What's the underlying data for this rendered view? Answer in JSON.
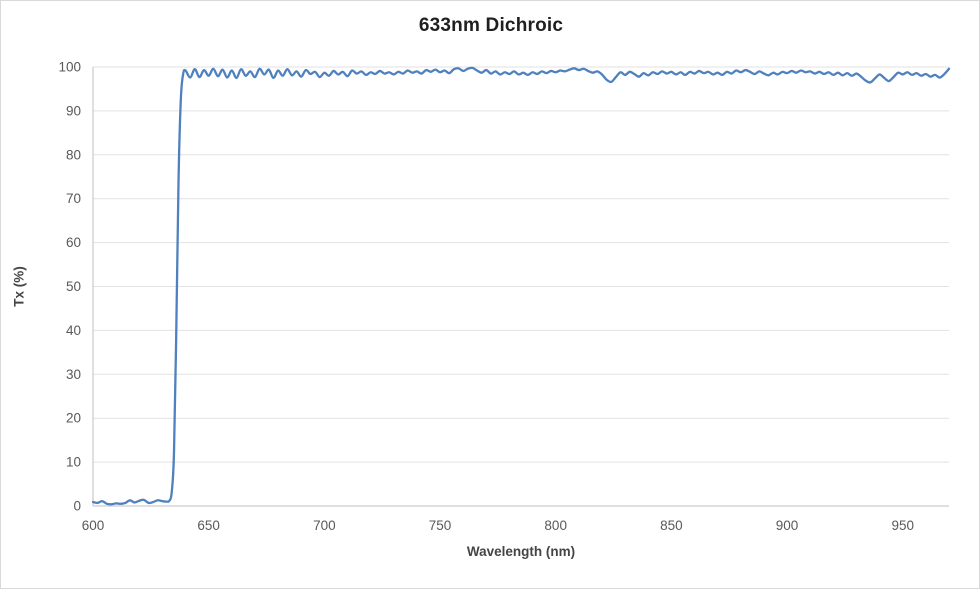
{
  "chart": {
    "title": "633nm Dichroic",
    "x_axis_title": "Wavelength (nm)",
    "y_axis_title": "Tx (%)"
  },
  "style": {
    "line_color": "#4E81BD",
    "grid_color": "#E2E2E2",
    "axis_color": "#BFBFBF",
    "tick_label_color": "#595959",
    "title_color": "#1F1F1F",
    "background": "#FFFFFF"
  },
  "chart_data": {
    "type": "line",
    "title": "633nm Dichroic",
    "xlabel": "Wavelength (nm)",
    "ylabel": "Tx (%)",
    "xlim": [
      600,
      970
    ],
    "ylim": [
      0,
      100
    ],
    "x_ticks": [
      600,
      650,
      700,
      750,
      800,
      850,
      900,
      950
    ],
    "y_ticks": [
      0,
      10,
      20,
      30,
      40,
      50,
      60,
      70,
      80,
      90,
      100
    ],
    "grid": "horizontal",
    "legend": "none",
    "series": [
      {
        "name": "Tx (%)",
        "color": "#4E81BD",
        "points": [
          [
            600,
            0.9
          ],
          [
            602,
            0.7
          ],
          [
            604,
            1.1
          ],
          [
            606,
            0.5
          ],
          [
            608,
            0.4
          ],
          [
            610,
            0.6
          ],
          [
            612,
            0.5
          ],
          [
            614,
            0.7
          ],
          [
            616,
            1.3
          ],
          [
            618,
            0.8
          ],
          [
            620,
            1.2
          ],
          [
            622,
            1.4
          ],
          [
            624,
            0.7
          ],
          [
            626,
            0.9
          ],
          [
            628,
            1.3
          ],
          [
            630,
            1.1
          ],
          [
            632,
            1.0
          ],
          [
            633,
            1.2
          ],
          [
            634,
            3.0
          ],
          [
            635,
            12.0
          ],
          [
            636,
            40.0
          ],
          [
            637,
            75.0
          ],
          [
            638,
            93.0
          ],
          [
            639,
            98.5
          ],
          [
            640,
            99.2
          ],
          [
            642,
            97.6
          ],
          [
            644,
            99.5
          ],
          [
            646,
            97.7
          ],
          [
            648,
            99.3
          ],
          [
            650,
            98.0
          ],
          [
            652,
            99.6
          ],
          [
            654,
            97.9
          ],
          [
            656,
            99.4
          ],
          [
            658,
            97.6
          ],
          [
            660,
            99.2
          ],
          [
            662,
            97.5
          ],
          [
            664,
            99.5
          ],
          [
            666,
            98.0
          ],
          [
            668,
            99.0
          ],
          [
            670,
            97.7
          ],
          [
            672,
            99.6
          ],
          [
            674,
            98.3
          ],
          [
            676,
            99.4
          ],
          [
            678,
            97.5
          ],
          [
            680,
            99.2
          ],
          [
            682,
            98.0
          ],
          [
            684,
            99.5
          ],
          [
            686,
            98.1
          ],
          [
            688,
            99.0
          ],
          [
            690,
            97.8
          ],
          [
            692,
            99.3
          ],
          [
            694,
            98.4
          ],
          [
            696,
            98.9
          ],
          [
            698,
            97.7
          ],
          [
            700,
            98.7
          ],
          [
            702,
            98.0
          ],
          [
            704,
            99.1
          ],
          [
            706,
            98.3
          ],
          [
            708,
            98.9
          ],
          [
            710,
            97.9
          ],
          [
            712,
            99.2
          ],
          [
            714,
            98.5
          ],
          [
            716,
            99.0
          ],
          [
            718,
            98.2
          ],
          [
            720,
            98.8
          ],
          [
            722,
            98.4
          ],
          [
            724,
            99.1
          ],
          [
            726,
            98.5
          ],
          [
            728,
            98.8
          ],
          [
            730,
            98.3
          ],
          [
            732,
            98.9
          ],
          [
            734,
            98.5
          ],
          [
            736,
            99.2
          ],
          [
            738,
            98.7
          ],
          [
            740,
            99.0
          ],
          [
            742,
            98.5
          ],
          [
            744,
            99.3
          ],
          [
            746,
            98.9
          ],
          [
            748,
            99.4
          ],
          [
            750,
            98.8
          ],
          [
            752,
            99.2
          ],
          [
            754,
            98.6
          ],
          [
            756,
            99.5
          ],
          [
            758,
            99.7
          ],
          [
            760,
            99.1
          ],
          [
            762,
            99.6
          ],
          [
            764,
            99.8
          ],
          [
            766,
            99.2
          ],
          [
            768,
            98.7
          ],
          [
            770,
            99.3
          ],
          [
            772,
            98.5
          ],
          [
            774,
            99.0
          ],
          [
            776,
            98.3
          ],
          [
            778,
            98.8
          ],
          [
            780,
            98.4
          ],
          [
            782,
            99.0
          ],
          [
            784,
            98.3
          ],
          [
            786,
            98.7
          ],
          [
            788,
            98.2
          ],
          [
            790,
            98.8
          ],
          [
            792,
            98.4
          ],
          [
            794,
            99.0
          ],
          [
            796,
            98.6
          ],
          [
            798,
            99.1
          ],
          [
            800,
            98.8
          ],
          [
            802,
            99.2
          ],
          [
            804,
            99.0
          ],
          [
            806,
            99.4
          ],
          [
            808,
            99.7
          ],
          [
            810,
            99.3
          ],
          [
            812,
            99.6
          ],
          [
            814,
            99.1
          ],
          [
            816,
            98.7
          ],
          [
            818,
            99.0
          ],
          [
            820,
            98.3
          ],
          [
            822,
            97.1
          ],
          [
            824,
            96.6
          ],
          [
            826,
            97.7
          ],
          [
            828,
            98.8
          ],
          [
            830,
            98.2
          ],
          [
            832,
            98.9
          ],
          [
            834,
            98.4
          ],
          [
            836,
            97.8
          ],
          [
            838,
            98.6
          ],
          [
            840,
            98.1
          ],
          [
            842,
            98.8
          ],
          [
            844,
            98.4
          ],
          [
            846,
            99.0
          ],
          [
            848,
            98.5
          ],
          [
            850,
            98.9
          ],
          [
            852,
            98.3
          ],
          [
            854,
            98.8
          ],
          [
            856,
            98.2
          ],
          [
            858,
            98.9
          ],
          [
            860,
            98.5
          ],
          [
            862,
            99.1
          ],
          [
            864,
            98.6
          ],
          [
            866,
            98.9
          ],
          [
            868,
            98.3
          ],
          [
            870,
            98.7
          ],
          [
            872,
            98.2
          ],
          [
            874,
            98.9
          ],
          [
            876,
            98.5
          ],
          [
            878,
            99.2
          ],
          [
            880,
            98.8
          ],
          [
            882,
            99.3
          ],
          [
            884,
            98.9
          ],
          [
            886,
            98.4
          ],
          [
            888,
            99.0
          ],
          [
            890,
            98.5
          ],
          [
            892,
            98.1
          ],
          [
            894,
            98.7
          ],
          [
            896,
            98.3
          ],
          [
            898,
            98.9
          ],
          [
            900,
            98.6
          ],
          [
            902,
            99.1
          ],
          [
            904,
            98.7
          ],
          [
            906,
            99.2
          ],
          [
            908,
            98.8
          ],
          [
            910,
            99.0
          ],
          [
            912,
            98.5
          ],
          [
            914,
            98.9
          ],
          [
            916,
            98.4
          ],
          [
            918,
            98.8
          ],
          [
            920,
            98.2
          ],
          [
            922,
            98.7
          ],
          [
            924,
            98.1
          ],
          [
            926,
            98.6
          ],
          [
            928,
            98.0
          ],
          [
            930,
            98.5
          ],
          [
            932,
            97.8
          ],
          [
            934,
            96.9
          ],
          [
            936,
            96.5
          ],
          [
            938,
            97.4
          ],
          [
            940,
            98.3
          ],
          [
            942,
            97.5
          ],
          [
            944,
            96.8
          ],
          [
            946,
            97.7
          ],
          [
            948,
            98.7
          ],
          [
            950,
            98.3
          ],
          [
            952,
            98.8
          ],
          [
            954,
            98.2
          ],
          [
            956,
            98.6
          ],
          [
            958,
            98.0
          ],
          [
            960,
            98.4
          ],
          [
            962,
            97.8
          ],
          [
            964,
            98.2
          ],
          [
            966,
            97.6
          ],
          [
            968,
            98.4
          ],
          [
            970,
            99.6
          ]
        ]
      }
    ]
  }
}
